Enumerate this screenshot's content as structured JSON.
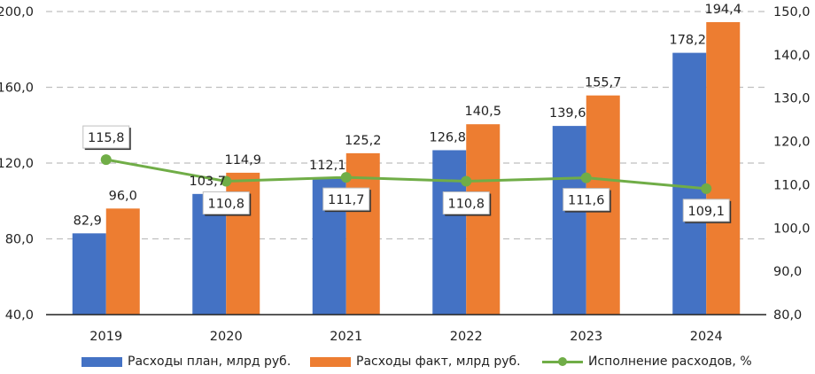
{
  "chart_data": {
    "type": "bar",
    "title": "",
    "categories": [
      "2019",
      "2020",
      "2021",
      "2022",
      "2023",
      "2024"
    ],
    "series": [
      {
        "name": "Расходы план, млрд руб.",
        "type": "bar",
        "axis": "left",
        "color": "#4472C4",
        "values": [
          82.9,
          103.7,
          112.1,
          126.8,
          139.6,
          178.2
        ],
        "labels": [
          "82,9",
          "103,7",
          "112,1",
          "126,8",
          "139,6",
          "178,2"
        ]
      },
      {
        "name": "Расходы факт, млрд руб.",
        "type": "bar",
        "axis": "left",
        "color": "#ED7D31",
        "values": [
          96.0,
          114.9,
          125.2,
          140.5,
          155.7,
          194.4
        ],
        "labels": [
          "96,0",
          "114,9",
          "125,2",
          "140,5",
          "155,7",
          "194,4"
        ]
      },
      {
        "name": "Исполнение расходов, %",
        "type": "line",
        "axis": "right",
        "color": "#70AD47",
        "values": [
          115.8,
          110.8,
          111.7,
          110.8,
          111.6,
          109.1
        ],
        "labels": [
          "115,8",
          "110,8",
          "111,7",
          "110,8",
          "111,6",
          "109,1"
        ]
      }
    ],
    "y_left": {
      "min": 40,
      "max": 200,
      "ticks": [
        40,
        80,
        120,
        160,
        200
      ],
      "tick_labels": [
        "40,0",
        "80,0",
        "120,0",
        "160,0",
        "200,0"
      ]
    },
    "y_right": {
      "min": 80,
      "max": 150,
      "ticks": [
        80,
        90,
        100,
        110,
        120,
        130,
        140,
        150
      ],
      "tick_labels": [
        "80,0",
        "90,0",
        "100,0",
        "110,0",
        "120,0",
        "130,0",
        "140,0",
        "150,0"
      ]
    },
    "xlabel": "",
    "ylabel": "",
    "grid": true,
    "legend_position": "bottom"
  }
}
